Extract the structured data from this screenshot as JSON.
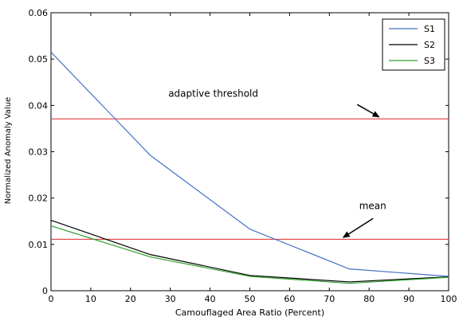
{
  "chart_data": {
    "type": "line",
    "title": "",
    "xlabel": "Camouflaged Area Ratio (Percent)",
    "ylabel": "Normalized Anomaly Value",
    "xlim": [
      0,
      100
    ],
    "ylim": [
      0,
      0.06
    ],
    "xticks": [
      0,
      10,
      20,
      30,
      40,
      50,
      60,
      70,
      80,
      90,
      100
    ],
    "xtick_labels": [
      "0",
      "10",
      "20",
      "30",
      "40",
      "50",
      "60",
      "70",
      "80",
      "90",
      "100"
    ],
    "yticks": [
      0,
      0.01,
      0.02,
      0.03,
      0.04,
      0.05,
      0.06
    ],
    "ytick_labels": [
      "0",
      "0.01",
      "0.02",
      "0.03",
      "0.04",
      "0.05",
      "0.06"
    ],
    "grid": false,
    "legend_position": "top-right",
    "series": [
      {
        "name": "S1",
        "color": "#4472c4",
        "x": [
          0,
          25,
          50,
          75,
          100
        ],
        "y": [
          0.0515,
          0.0292,
          0.0133,
          0.0047,
          0.0031
        ]
      },
      {
        "name": "S2",
        "color": "#000000",
        "x": [
          0,
          25,
          50,
          75,
          100
        ],
        "y": [
          0.0152,
          0.0078,
          0.0033,
          0.0019,
          0.003
        ]
      },
      {
        "name": "S3",
        "color": "#2ca02c",
        "x": [
          0,
          25,
          50,
          75,
          100
        ],
        "y": [
          0.014,
          0.0073,
          0.0031,
          0.0016,
          0.0029
        ]
      }
    ],
    "reference_lines": [
      {
        "label": "adaptive threshold",
        "y": 0.0371,
        "color": "#e32626"
      },
      {
        "label": "mean",
        "y": 0.0111,
        "color": "#e32626"
      }
    ],
    "annotations": [
      {
        "text": "adaptive threshold",
        "x": 29.5,
        "y": 0.0419,
        "arrow_from": [
          77,
          0.0402
        ],
        "arrow_to": [
          82.5,
          0.0375
        ]
      },
      {
        "text": "mean",
        "x": 77.5,
        "y": 0.0176,
        "arrow_from": [
          81,
          0.0156
        ],
        "arrow_to": [
          73.5,
          0.0115
        ]
      }
    ]
  }
}
